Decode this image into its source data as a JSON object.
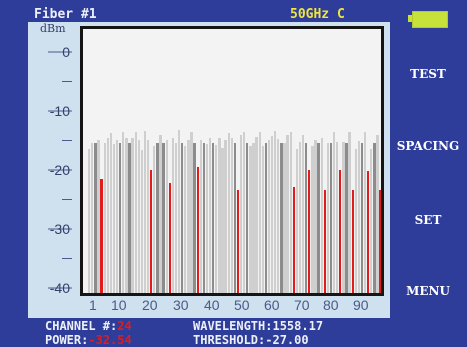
{
  "header": {
    "title": "Fiber #1",
    "mode": "50GHz  C"
  },
  "softkeys": [
    "TEST",
    "SPACING",
    "SET",
    "MENU"
  ],
  "status": {
    "channel_label": "CHANNEL #:",
    "channel_value": "24",
    "power_label": "POWER:",
    "power_value": "-32.54",
    "wavelength_label": "WAVELENGTH:",
    "wavelength_value": "1558.17",
    "threshold_label": "THRESHOLD:",
    "threshold_value": "-27.00"
  },
  "chart_data": {
    "type": "bar",
    "y_unit_label": "dBm",
    "yticks": [
      "0",
      "-10",
      "-20",
      "-30",
      "-40"
    ],
    "xticks": [
      "1",
      "10",
      "20",
      "30",
      "40",
      "50",
      "60",
      "70",
      "80",
      "90"
    ],
    "ylim": [
      -42,
      3
    ],
    "channels": 96,
    "floor_values": [
      -17.5,
      -16.5,
      -14.8,
      -16,
      -14.2,
      -16.5,
      -15.5,
      -14.8,
      -16.6,
      -16,
      -17.5,
      -14.5,
      -15.5,
      -17,
      -15.5,
      -14.5,
      -16,
      -17.6,
      -14.4,
      -16,
      -15.2,
      -17,
      -16,
      -15,
      -14.4,
      -16,
      -17.5,
      -15.5,
      -16.5,
      -14.2,
      -15.8,
      -17,
      -16,
      -14.5,
      -15.5,
      -17,
      -15.9,
      -14.8,
      -16.6,
      -15.5,
      -14.3,
      -16.8,
      -15.5,
      -17.3,
      -16,
      -14.8,
      -15.5,
      -17,
      -16.5,
      -15,
      -14.5,
      -16,
      -17,
      -16.4,
      -15.4,
      -14.6,
      -16.9,
      -17.3,
      -16,
      -15.2,
      -14.4,
      -15.8,
      -17.4,
      -16.5,
      -15.1,
      -14.6,
      -16,
      -17.4,
      -16.3,
      -15.1,
      -14.2,
      -15.6,
      -16.9,
      -16,
      -14.8,
      -15.5,
      -17.3,
      -16.5,
      -15,
      -14.5,
      -16.2,
      -17.5,
      -16.3,
      -15,
      -14.6,
      -16,
      -17.5,
      -16.1,
      -15,
      -14.6,
      -16.8,
      -17.4,
      -16,
      -15,
      -14.8,
      -16.5
    ],
    "mid_channels": [
      3,
      11,
      14,
      23,
      25,
      31,
      35,
      38,
      41,
      48,
      52,
      58,
      63,
      71,
      75,
      79,
      84,
      89,
      93
    ],
    "mid_value": -16.5,
    "threshold_channels": [
      5,
      21,
      27,
      36,
      49,
      67,
      72,
      77,
      82,
      86,
      91,
      95
    ],
    "threshold_values": [
      -22.5,
      -21,
      -23.2,
      -20.5,
      -24.5,
      -24,
      -21,
      -24.5,
      -21,
      -24.5,
      -21.2,
      -24.5
    ],
    "colors": {
      "floor": "#cfcfcf",
      "mid": "#8c8c8c",
      "threshold": "#e01c1c"
    }
  }
}
